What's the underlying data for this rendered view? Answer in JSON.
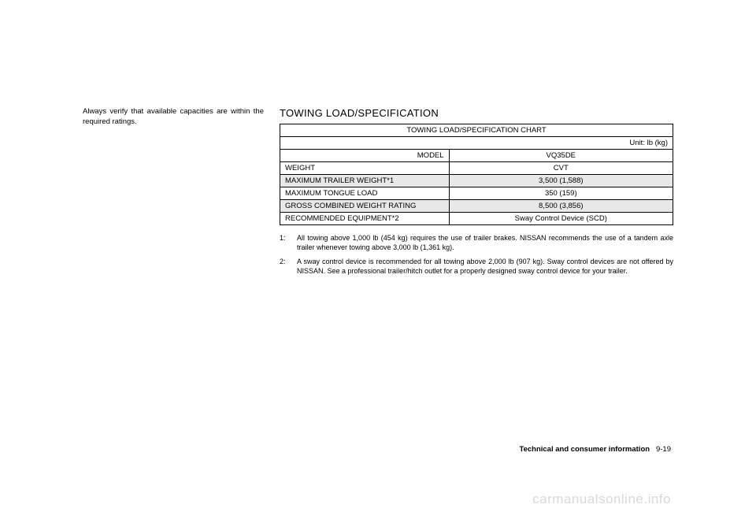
{
  "left_text": "Always verify that available capacities are within the required ratings.",
  "heading": "TOWING LOAD/SPECIFICATION",
  "table": {
    "title": "TOWING LOAD/SPECIFICATION CHART",
    "unit": "Unit: lb (kg)",
    "model_label": "MODEL",
    "weight_label": "WEIGHT",
    "model_value": "VQ35DE",
    "weight_value": "CVT",
    "rows": [
      {
        "label": "MAXIMUM TRAILER WEIGHT*1",
        "value": "3,500 (1,588)",
        "gray": true
      },
      {
        "label": "MAXIMUM TONGUE LOAD",
        "value": "350 (159)",
        "gray": false
      },
      {
        "label": "GROSS COMBINED WEIGHT RATING",
        "value": "8,500 (3,856)",
        "gray": true
      },
      {
        "label": "RECOMMENDED EQUIPMENT*2",
        "value": "Sway Control Device (SCD)",
        "gray": false
      }
    ]
  },
  "footnotes": [
    {
      "num": "1:",
      "text": "All towing above 1,000 lb (454 kg) requires the use of trailer brakes. NISSAN recommends the use of a tandem axle trailer whenever towing above 3,000 lb (1,361 kg)."
    },
    {
      "num": "2:",
      "text": "A sway control device is recommended for all towing above 2,000 lb (907 kg). Sway control devices are not offered by NISSAN. See a professional trailer/hitch outlet for a properly designed sway control device for your trailer."
    }
  ],
  "footer_section": "Technical and consumer information",
  "footer_page": "9-19",
  "watermark": "carmanualsonline.info"
}
